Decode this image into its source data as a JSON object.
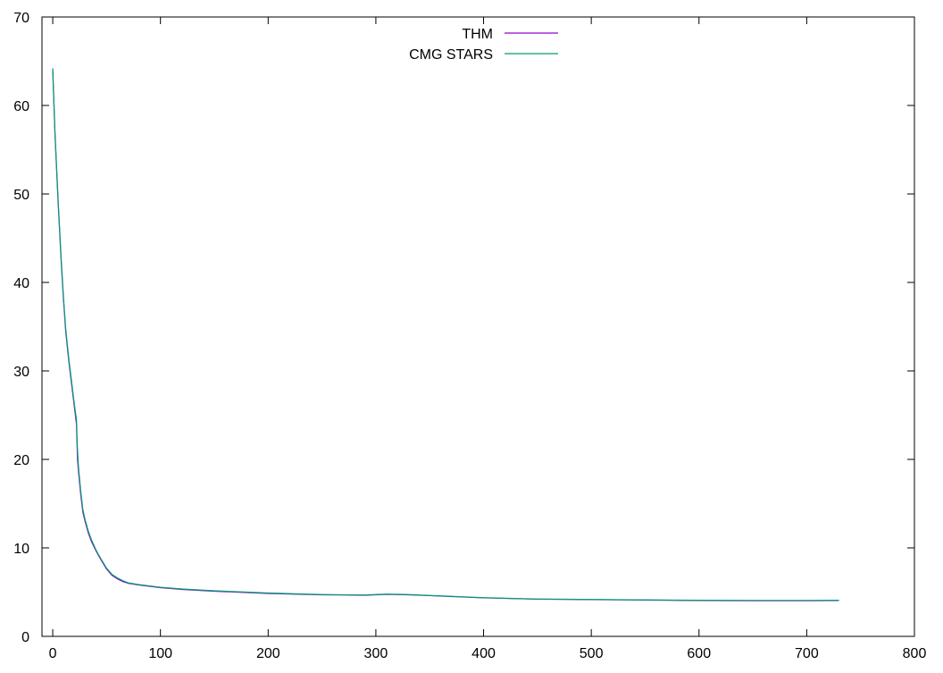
{
  "chart_data": {
    "type": "line",
    "title": "",
    "xlabel": "",
    "ylabel": "",
    "xlim": [
      -10,
      800
    ],
    "ylim": [
      0,
      70
    ],
    "xticks": [
      0,
      100,
      200,
      300,
      400,
      500,
      600,
      700,
      800
    ],
    "yticks": [
      0,
      10,
      20,
      30,
      40,
      50,
      60,
      70
    ],
    "grid": false,
    "legend_position": "top-center",
    "series": [
      {
        "name": "THM",
        "color": "#9400d3",
        "x": [
          0,
          2,
          5,
          8,
          10,
          12,
          15,
          18,
          20,
          22,
          23,
          24,
          26,
          28,
          30,
          33,
          36,
          40,
          45,
          50,
          55,
          60,
          65,
          70,
          80,
          90,
          100,
          120,
          150,
          200,
          250,
          290,
          300,
          310,
          330,
          350,
          400,
          450,
          500,
          550,
          600,
          650,
          700,
          730
        ],
        "y": [
          64.0,
          57.0,
          49.0,
          42.0,
          38.0,
          34.5,
          31.0,
          28.0,
          26.0,
          24.0,
          20.0,
          18.5,
          16.0,
          14.0,
          13.0,
          11.7,
          10.7,
          9.7,
          8.6,
          7.6,
          6.9,
          6.5,
          6.2,
          6.0,
          5.8,
          5.65,
          5.5,
          5.3,
          5.1,
          4.85,
          4.7,
          4.65,
          4.7,
          4.75,
          4.7,
          4.6,
          4.35,
          4.2,
          4.15,
          4.1,
          4.05,
          4.03,
          4.03,
          4.05
        ]
      },
      {
        "name": "CMG STARS",
        "color": "#009e73",
        "x": [
          0,
          2,
          5,
          8,
          10,
          12,
          15,
          18,
          20,
          22,
          23,
          24,
          26,
          28,
          30,
          33,
          36,
          40,
          45,
          50,
          55,
          60,
          65,
          70,
          80,
          90,
          100,
          120,
          150,
          200,
          250,
          290,
          300,
          310,
          330,
          350,
          400,
          450,
          500,
          550,
          600,
          650,
          700,
          730
        ],
        "y": [
          64.2,
          57.2,
          49.3,
          42.3,
          38.3,
          34.8,
          31.3,
          28.3,
          26.3,
          24.5,
          21.0,
          19.0,
          16.4,
          14.3,
          13.2,
          11.9,
          10.9,
          9.8,
          8.7,
          7.7,
          7.0,
          6.6,
          6.3,
          6.05,
          5.85,
          5.7,
          5.55,
          5.35,
          5.15,
          4.9,
          4.72,
          4.68,
          4.72,
          4.78,
          4.72,
          4.62,
          4.37,
          4.22,
          4.17,
          4.12,
          4.08,
          4.06,
          4.06,
          4.08
        ]
      }
    ]
  }
}
